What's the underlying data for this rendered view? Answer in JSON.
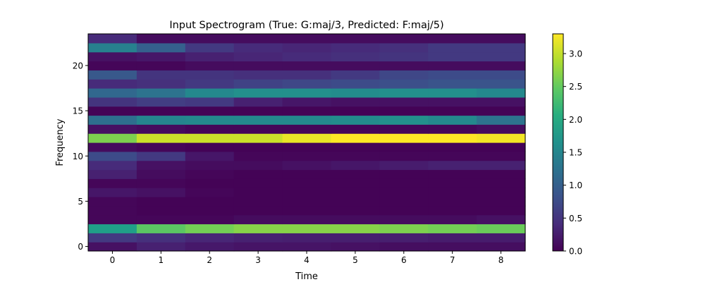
{
  "chart_data": {
    "type": "heatmap",
    "title": "Input Spectrogram (True: G:maj/3, Predicted: F:maj/5)",
    "xlabel": "Time",
    "ylabel": "Frequency",
    "x": [
      0,
      1,
      2,
      3,
      4,
      5,
      6,
      7,
      8
    ],
    "y": [
      0,
      1,
      2,
      3,
      4,
      5,
      6,
      7,
      8,
      9,
      10,
      11,
      12,
      13,
      14,
      15,
      16,
      17,
      18,
      19,
      20,
      21,
      22,
      23
    ],
    "xticks": [
      0,
      1,
      2,
      3,
      4,
      5,
      6,
      7,
      8
    ],
    "yticks": [
      0,
      5,
      10,
      15,
      20
    ],
    "xlim": [
      -0.5,
      8.5
    ],
    "ylim": [
      -0.5,
      23.5
    ],
    "colormap": "viridis",
    "colorbar": {
      "min": 0.0,
      "max": 3.3,
      "ticks": [
        "0.0",
        "0.5",
        "1.0",
        "1.5",
        "2.0",
        "2.5",
        "3.0"
      ]
    },
    "values": [
      [
        0.15,
        0.3,
        0.22,
        0.18,
        0.18,
        0.15,
        0.12,
        0.12,
        0.12
      ],
      [
        0.55,
        0.45,
        0.35,
        0.3,
        0.28,
        0.28,
        0.28,
        0.25,
        0.25
      ],
      [
        1.85,
        2.45,
        2.6,
        2.7,
        2.7,
        2.7,
        2.65,
        2.6,
        2.55
      ],
      [
        0.05,
        0.05,
        0.05,
        0.1,
        0.1,
        0.1,
        0.1,
        0.1,
        0.15
      ],
      [
        0.05,
        0.02,
        0.02,
        0.02,
        0.02,
        0.02,
        0.02,
        0.02,
        0.02
      ],
      [
        0.05,
        0.02,
        0.02,
        0.02,
        0.02,
        0.02,
        0.02,
        0.02,
        0.02
      ],
      [
        0.2,
        0.15,
        0.05,
        0.02,
        0.02,
        0.02,
        0.02,
        0.02,
        0.02
      ],
      [
        0.05,
        0.05,
        0.02,
        0.02,
        0.02,
        0.02,
        0.02,
        0.02,
        0.02
      ],
      [
        0.3,
        0.1,
        0.05,
        0.02,
        0.02,
        0.02,
        0.02,
        0.02,
        0.02
      ],
      [
        0.4,
        0.15,
        0.1,
        0.1,
        0.15,
        0.2,
        0.25,
        0.3,
        0.3
      ],
      [
        0.75,
        0.55,
        0.2,
        0.05,
        0.05,
        0.05,
        0.05,
        0.05,
        0.05
      ],
      [
        0.1,
        0.05,
        0.02,
        0.02,
        0.02,
        0.02,
        0.02,
        0.02,
        0.02
      ],
      [
        2.65,
        3.05,
        3.05,
        3.05,
        3.2,
        3.3,
        3.3,
        3.3,
        3.25
      ],
      [
        0.15,
        0.1,
        0.05,
        0.05,
        0.05,
        0.05,
        0.05,
        0.05,
        0.1
      ],
      [
        1.2,
        1.5,
        1.55,
        1.55,
        1.55,
        1.6,
        1.65,
        1.55,
        1.25
      ],
      [
        0.02,
        0.02,
        0.02,
        0.02,
        0.02,
        0.02,
        0.02,
        0.02,
        0.02
      ],
      [
        0.5,
        0.6,
        0.55,
        0.3,
        0.2,
        0.15,
        0.15,
        0.15,
        0.15
      ],
      [
        1.1,
        1.25,
        1.55,
        1.65,
        1.65,
        1.6,
        1.65,
        1.65,
        1.55
      ],
      [
        0.4,
        0.45,
        0.55,
        0.65,
        0.7,
        0.75,
        0.8,
        0.85,
        0.85
      ],
      [
        0.9,
        0.5,
        0.5,
        0.45,
        0.45,
        0.55,
        0.7,
        0.75,
        0.75
      ],
      [
        0.05,
        0.05,
        0.1,
        0.1,
        0.1,
        0.1,
        0.1,
        0.1,
        0.1
      ],
      [
        0.15,
        0.2,
        0.3,
        0.35,
        0.4,
        0.45,
        0.5,
        0.55,
        0.55
      ],
      [
        1.45,
        1.0,
        0.55,
        0.4,
        0.35,
        0.4,
        0.45,
        0.55,
        0.55
      ],
      [
        0.4,
        0.1,
        0.1,
        0.1,
        0.1,
        0.1,
        0.1,
        0.1,
        0.1
      ]
    ]
  }
}
